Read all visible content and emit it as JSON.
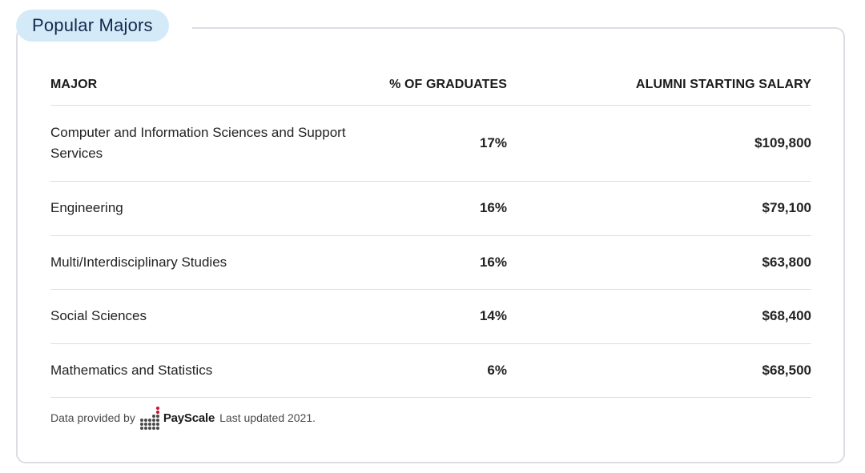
{
  "section": {
    "title": "Popular Majors"
  },
  "table": {
    "headers": {
      "major": "MAJOR",
      "percent": "% OF GRADUATES",
      "salary": "ALUMNI STARTING SALARY"
    },
    "rows": [
      {
        "major": "Computer and Information Sciences and Support Services",
        "percent": "17%",
        "salary": "$109,800"
      },
      {
        "major": "Engineering",
        "percent": "16%",
        "salary": "$79,100"
      },
      {
        "major": "Multi/Interdisciplinary Studies",
        "percent": "16%",
        "salary": "$63,800"
      },
      {
        "major": "Social Sciences",
        "percent": "14%",
        "salary": "$68,400"
      },
      {
        "major": "Mathematics and Statistics",
        "percent": "6%",
        "salary": "$68,500"
      }
    ]
  },
  "footer": {
    "prefix": "Data provided by",
    "brand": "PayScale",
    "updated": "Last updated 2021."
  },
  "colors": {
    "pill_bg": "#d4eaf9",
    "pill_text": "#12284c",
    "border": "#dcdde3",
    "logo_accent": "#c8102e",
    "logo_dots": "#4a4a4a"
  }
}
